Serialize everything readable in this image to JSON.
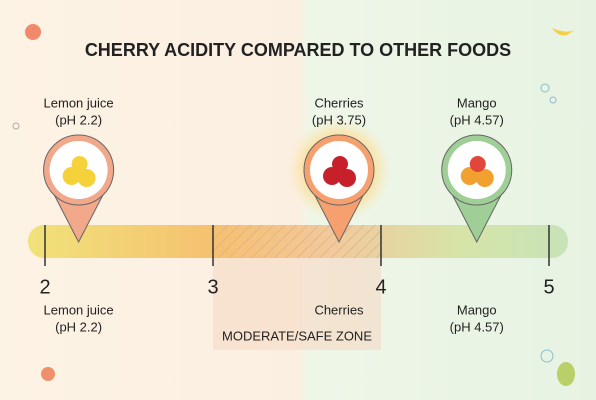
{
  "chart_data": {
    "type": "scale",
    "title": "CHERRY ACIDITY COMPARED TO OTHER FOODS",
    "xlim": [
      2,
      5
    ],
    "xticks": [
      2,
      3,
      4,
      5
    ],
    "zone": {
      "label": "MODERATE/SAFE ZONE",
      "range": [
        3,
        4
      ]
    },
    "points": [
      {
        "name": "Lemon juice",
        "label": "(pH 2.2)",
        "x": 2.2,
        "color": "#f2a88a",
        "bottom": [
          "Lemon juice",
          "(pH 2.2)"
        ]
      },
      {
        "name": "Cherries",
        "label": "(pH 3.75)",
        "x": 3.75,
        "color": "#f6a070",
        "highlight": true,
        "bottom": [
          "Cherries"
        ]
      },
      {
        "name": "Mango",
        "label": "(pH 4.57)",
        "x": 4.57,
        "color": "#9fcf96",
        "bottom": [
          "Mango",
          "(pH 4.57)"
        ]
      }
    ]
  }
}
